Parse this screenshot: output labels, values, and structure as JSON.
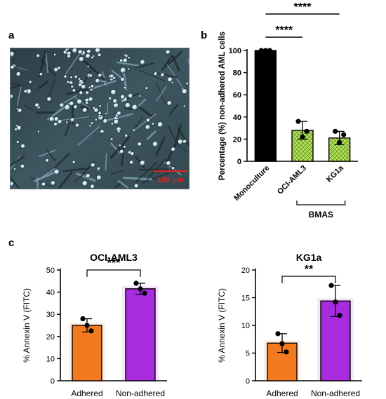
{
  "panels": {
    "a": "a",
    "b": "b",
    "c": "c"
  },
  "micrograph": {
    "scale_bar_label": "100 µm"
  },
  "chart_data": [
    {
      "id": "b",
      "type": "bar",
      "ylabel": "Percentage (%) non-adhered AML cells",
      "ylim": [
        0,
        100
      ],
      "yticks": [
        0,
        20,
        40,
        60,
        80,
        100
      ],
      "categories": [
        "Monoculture",
        "OCI-AML3",
        "KG1a"
      ],
      "values": [
        100,
        28,
        21
      ],
      "error": [
        0,
        8,
        6
      ],
      "points": [
        [
          100,
          100,
          100
        ],
        [
          36,
          22,
          27
        ],
        [
          27,
          17,
          24
        ]
      ],
      "colors": [
        "#000000",
        "#b5e05a",
        "#b5e05a"
      ],
      "group_label": "BMAS",
      "significance": [
        {
          "from": 0,
          "to": 1,
          "label": "****"
        },
        {
          "from": 0,
          "to": 2,
          "label": "****"
        }
      ]
    },
    {
      "id": "c-left",
      "type": "bar",
      "title": "OCI-AML3",
      "ylabel": "% Annexin V (FITC)",
      "ylim": [
        0,
        50
      ],
      "yticks": [
        0,
        10,
        20,
        30,
        40,
        50
      ],
      "categories": [
        "Adhered",
        "Non-adhered"
      ],
      "values": [
        25,
        41.5
      ],
      "error": [
        3,
        2.5
      ],
      "points": [
        [
          28,
          22.5,
          25
        ],
        [
          44,
          39.5,
          41.5
        ]
      ],
      "colors": [
        "#f47a1f",
        "#a82be0"
      ],
      "significance": [
        {
          "from": 0,
          "to": 1,
          "label": "***"
        }
      ]
    },
    {
      "id": "c-right",
      "type": "bar",
      "title": "KG1a",
      "ylabel": "% Annexin V (FITC)",
      "ylim": [
        0,
        20
      ],
      "yticks": [
        0,
        5,
        10,
        15,
        20
      ],
      "categories": [
        "Adhered",
        "Non-adhered"
      ],
      "values": [
        6.8,
        14.4
      ],
      "error": [
        1.7,
        2.8
      ],
      "points": [
        [
          8.5,
          5.2,
          6.7
        ],
        [
          17.2,
          11.8,
          14.2
        ]
      ],
      "colors": [
        "#f47a1f",
        "#a82be0"
      ],
      "significance": [
        {
          "from": 0,
          "to": 1,
          "label": "**"
        }
      ]
    }
  ]
}
